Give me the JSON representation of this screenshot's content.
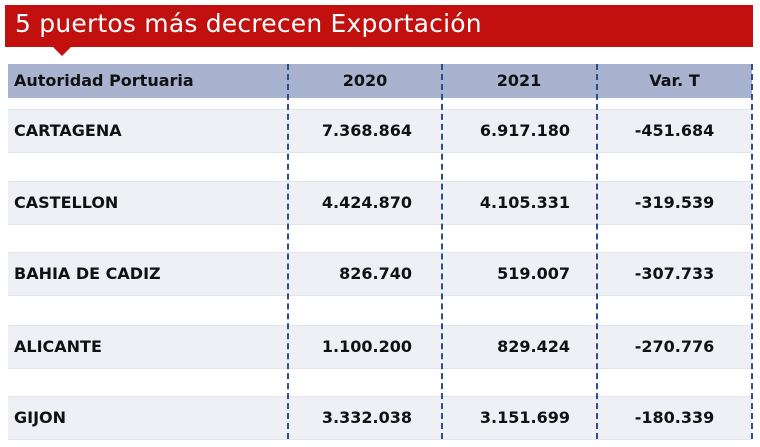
{
  "title": "5 puertos más decrecen Exportación",
  "colors": {
    "banner": "#c1100d",
    "header": "#a9b3cf",
    "row": "#eef0f6",
    "divider": "#2b4f8a"
  },
  "table": {
    "headers": [
      "Autoridad Portuaria",
      "2020",
      "2021",
      "Var. T"
    ],
    "rows": [
      {
        "name": "CARTAGENA",
        "y2020": "7.368.864",
        "y2021": "6.917.180",
        "var": "-451.684"
      },
      {
        "name": "CASTELLON",
        "y2020": "4.424.870",
        "y2021": "4.105.331",
        "var": "-319.539"
      },
      {
        "name": "BAHIA DE CADIZ",
        "y2020": "826.740",
        "y2021": "519.007",
        "var": "-307.733"
      },
      {
        "name": "ALICANTE",
        "y2020": "1.100.200",
        "y2021": "829.424",
        "var": "-270.776"
      },
      {
        "name": "GIJON",
        "y2020": "3.332.038",
        "y2021": "3.151.699",
        "var": "-180.339"
      }
    ]
  }
}
